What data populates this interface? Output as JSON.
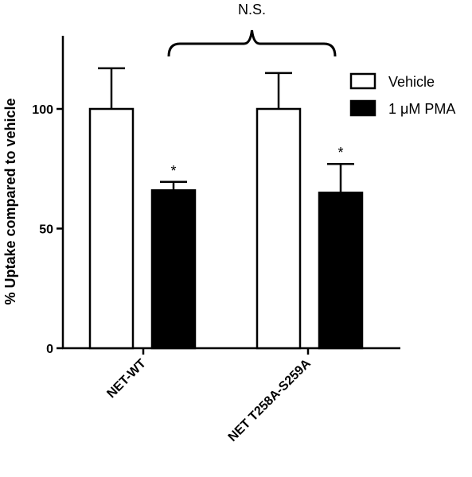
{
  "chart_data": {
    "type": "bar",
    "title": "",
    "xlabel": "",
    "ylabel": "% Uptake compared to vehicle",
    "ylim": [
      0,
      130
    ],
    "yticks": [
      0,
      50,
      100
    ],
    "categories": [
      "NET-WT",
      "NET T258A-S259A"
    ],
    "series": [
      {
        "name": "Vehicle",
        "values": [
          100,
          100
        ],
        "errors": [
          17,
          15
        ],
        "color": "#ffffff"
      },
      {
        "name": "1 μM PMA",
        "values": [
          66,
          65
        ],
        "errors": [
          3.5,
          12
        ],
        "color": "#000000"
      }
    ],
    "significance": [
      {
        "category": "NET-WT",
        "series": "1 μM PMA",
        "label": "*"
      },
      {
        "category": "NET T258A-S259A",
        "series": "1 μM PMA",
        "label": "*"
      }
    ],
    "comparison": {
      "label": "N.S.",
      "between": [
        "NET-WT",
        "NET T258A-S259A"
      ]
    },
    "legend_position": "top-right",
    "grid": false
  }
}
